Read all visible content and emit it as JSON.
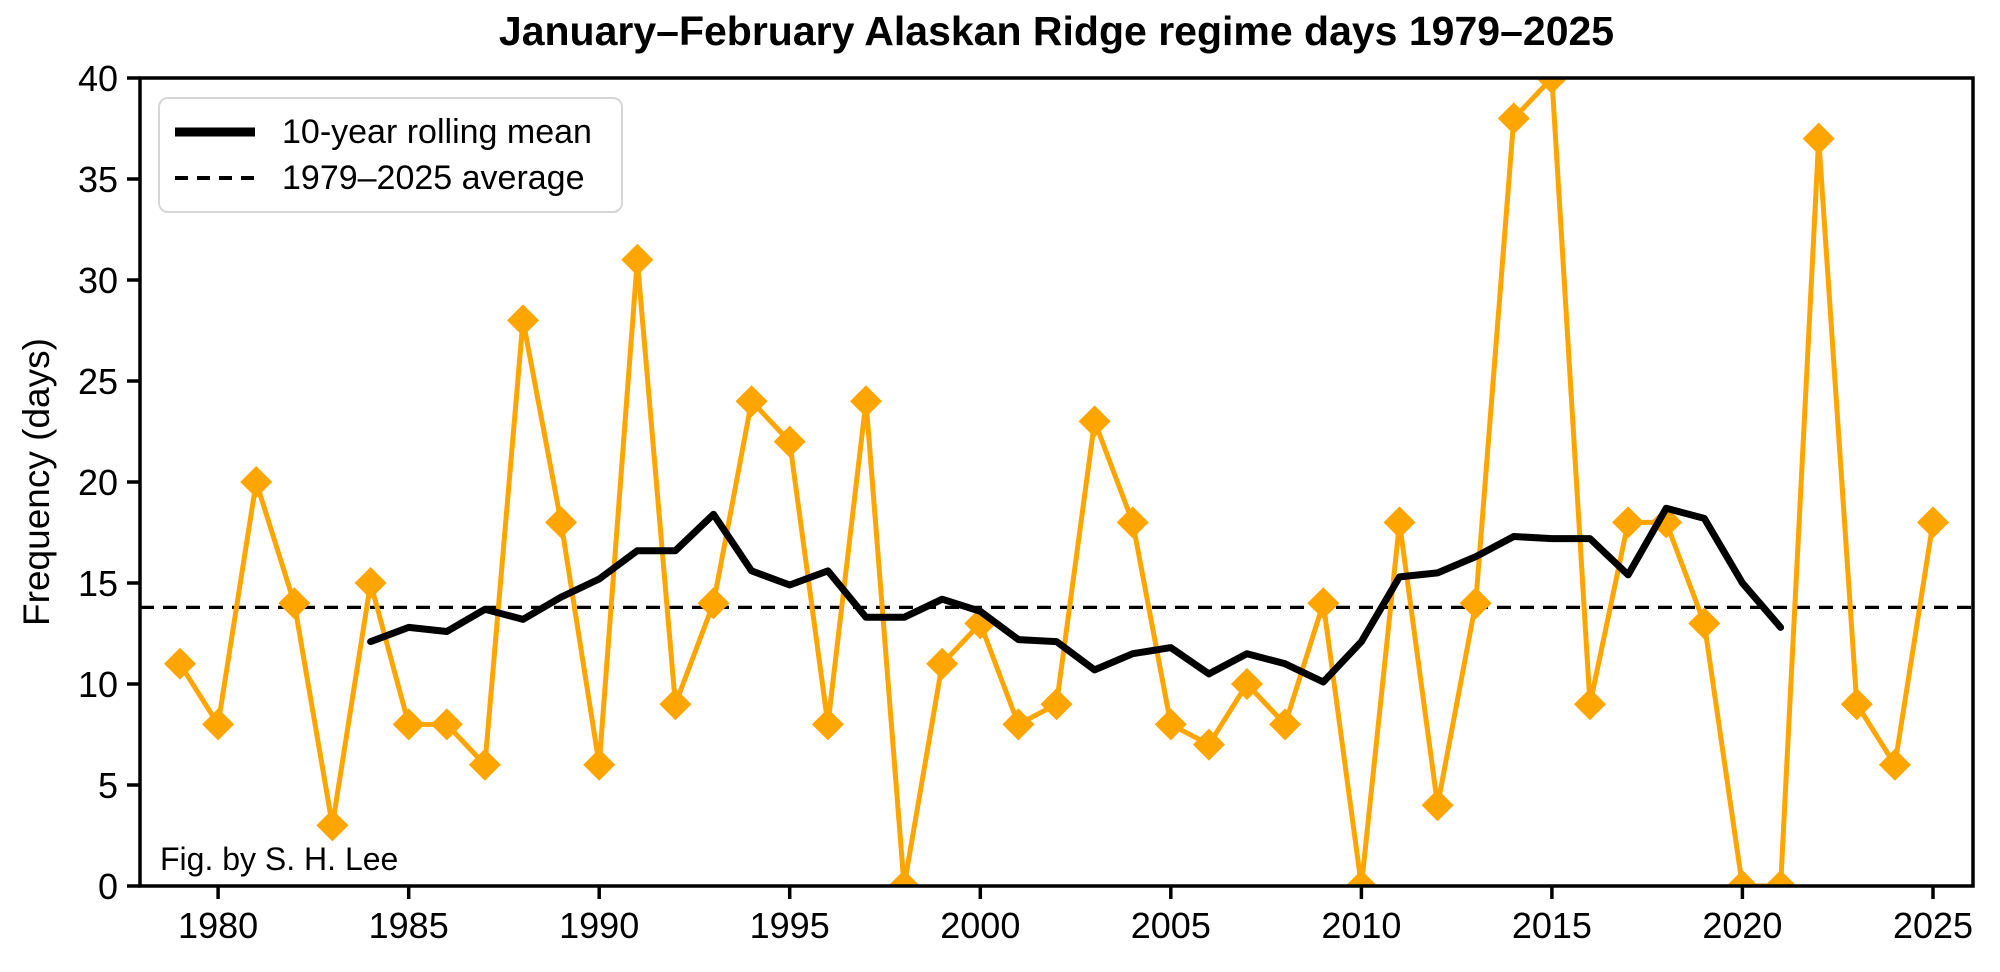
{
  "chart_data": {
    "type": "line",
    "title": "January–February Alaskan Ridge regime days 1979–2025",
    "xlabel": "",
    "ylabel": "Frequency (days)",
    "xlim": [
      1977.95,
      2026.05
    ],
    "ylim": [
      0,
      40
    ],
    "xticks": [
      1980,
      1985,
      1990,
      1995,
      2000,
      2005,
      2010,
      2015,
      2020,
      2025
    ],
    "yticks": [
      0,
      5,
      10,
      15,
      20,
      25,
      30,
      35,
      40
    ],
    "grid": false,
    "colors": {
      "series": "#FFA500",
      "rolling_mean": "#000000",
      "average": "#000000",
      "legend_border": "#d6d6d6"
    },
    "series": [
      {
        "name": "Jan–Feb Alaskan Ridge regime days",
        "type": "line",
        "marker": "diamond",
        "color": "#FFA500",
        "x": [
          1979,
          1980,
          1981,
          1982,
          1983,
          1984,
          1985,
          1986,
          1987,
          1988,
          1989,
          1990,
          1991,
          1992,
          1993,
          1994,
          1995,
          1996,
          1997,
          1998,
          1999,
          2000,
          2001,
          2002,
          2003,
          2004,
          2005,
          2006,
          2007,
          2008,
          2009,
          2010,
          2011,
          2012,
          2013,
          2014,
          2015,
          2016,
          2017,
          2018,
          2019,
          2020,
          2021,
          2022,
          2023,
          2024,
          2025
        ],
        "y": [
          11,
          8,
          20,
          14,
          3,
          15,
          8,
          8,
          6,
          28,
          18,
          6,
          31,
          9,
          14,
          24,
          22,
          8,
          24,
          0,
          11,
          13,
          8,
          9,
          23,
          18,
          8,
          7,
          10,
          8,
          14,
          0,
          18,
          4,
          14,
          38,
          40,
          9,
          18,
          18,
          13,
          0,
          0,
          37,
          9,
          6,
          18
        ]
      },
      {
        "name": "10-year rolling mean",
        "type": "line",
        "marker": "none",
        "color": "#000000",
        "x": [
          1984,
          1985,
          1986,
          1987,
          1988,
          1989,
          1990,
          1991,
          1992,
          1993,
          1994,
          1995,
          1996,
          1997,
          1998,
          1999,
          2000,
          2001,
          2002,
          2003,
          2004,
          2005,
          2006,
          2007,
          2008,
          2009,
          2010,
          2011,
          2012,
          2013,
          2014,
          2015,
          2016,
          2017,
          2018,
          2019,
          2020,
          2021
        ],
        "y": [
          12.1,
          12.8,
          12.6,
          13.7,
          13.2,
          14.3,
          15.2,
          16.6,
          16.6,
          18.4,
          15.6,
          14.9,
          15.6,
          13.3,
          13.3,
          14.2,
          13.6,
          12.2,
          12.1,
          10.7,
          11.5,
          11.8,
          10.5,
          11.5,
          11.0,
          10.1,
          12.1,
          15.3,
          15.5,
          16.3,
          17.3,
          17.2,
          17.2,
          15.4,
          18.7,
          18.2,
          15.0,
          12.8
        ]
      },
      {
        "name": "1979–2025 average",
        "type": "hline",
        "style": "dashed",
        "color": "#000000",
        "value": 13.79
      }
    ],
    "legend": {
      "position": "upper left",
      "entries": [
        {
          "label": "10-year rolling mean",
          "sample": "solid-thick"
        },
        {
          "label": "1979–2025 average",
          "sample": "dashed"
        }
      ]
    },
    "annotations": [
      {
        "text": "Fig. by S. H. Lee",
        "position": "lower left"
      }
    ]
  }
}
